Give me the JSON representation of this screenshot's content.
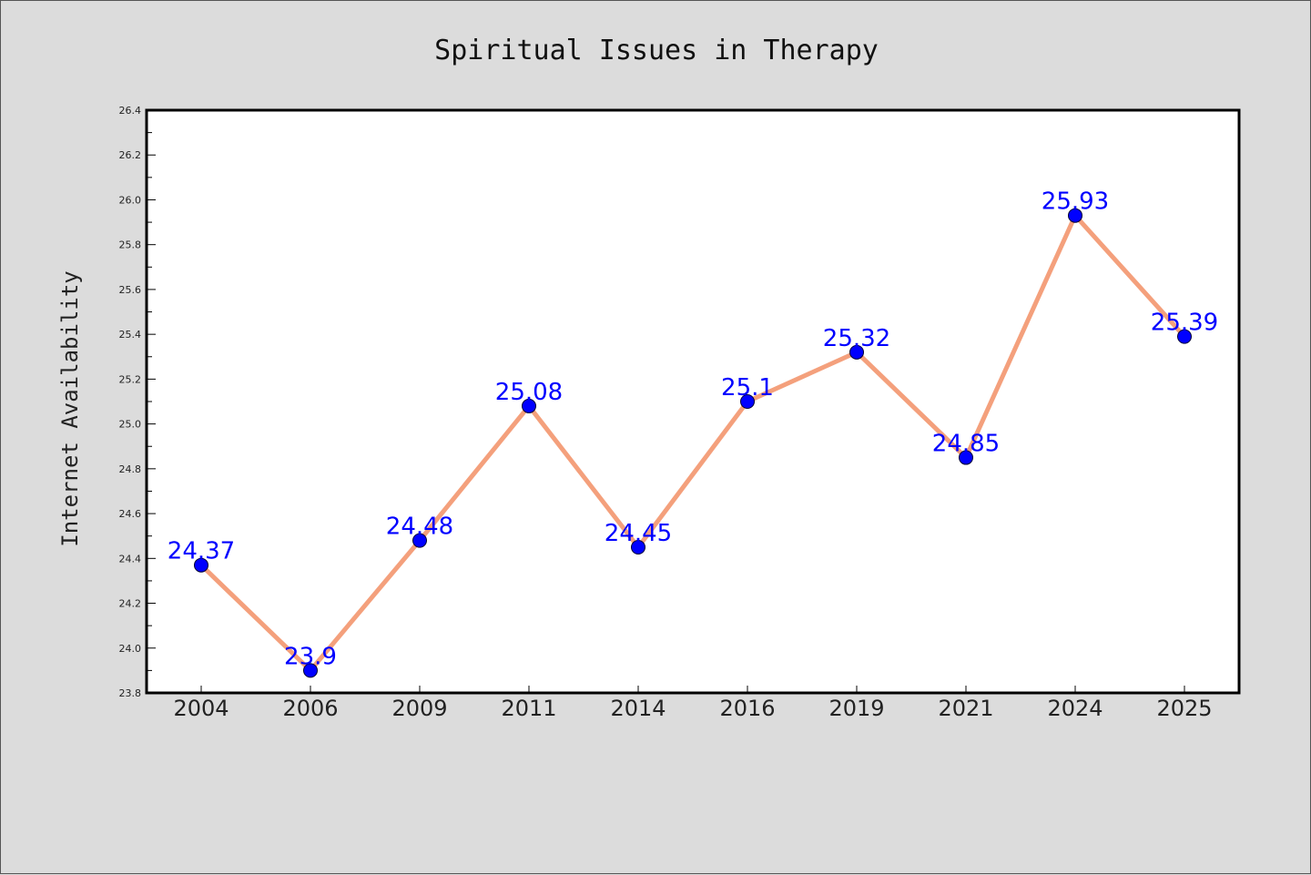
{
  "chart_data": {
    "type": "line",
    "title": "Spiritual Issues in Therapy",
    "xlabel": "",
    "ylabel": "Internet Availability",
    "categories": [
      "2004",
      "2006",
      "2009",
      "2011",
      "2014",
      "2016",
      "2019",
      "2021",
      "2024",
      "2025"
    ],
    "series": [
      {
        "values": [
          24.37,
          23.9,
          24.48,
          25.08,
          24.45,
          25.1,
          25.32,
          24.85,
          25.93,
          25.39
        ],
        "labels": [
          "24.37",
          "23.9",
          "24.48",
          "25.08",
          "24.45",
          "25.1",
          "25.32",
          "24.85",
          "25.93",
          "25.39"
        ]
      }
    ],
    "ylim": [
      23.8,
      26.4
    ],
    "yticks": [
      "23.8",
      "24.0",
      "24.2",
      "24.4",
      "24.6",
      "24.8",
      "25.0",
      "25.2",
      "25.4",
      "25.6",
      "25.8",
      "26.0",
      "26.2",
      "26.4"
    ],
    "grid": false,
    "legend": "none",
    "colors": {
      "background": "#dcdcdc",
      "plot_background": "#ffffff",
      "line": "#f4a07c",
      "marker": "#0000ff",
      "data_label": "#0000ff"
    }
  }
}
